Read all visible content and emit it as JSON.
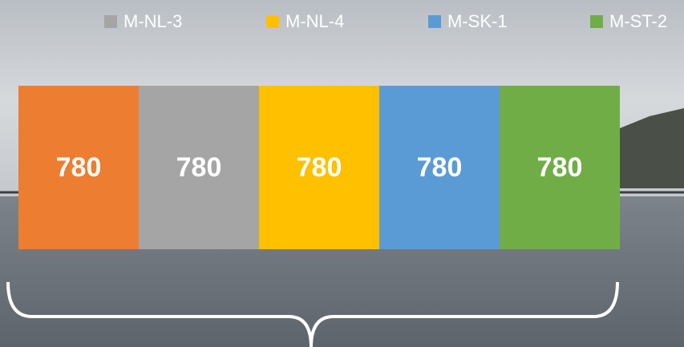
{
  "chart_data": {
    "type": "bar",
    "orientation": "horizontal",
    "stacked": true,
    "series": [
      {
        "color": "#ed7d31",
        "values": [
          780
        ]
      },
      {
        "name": "M-NL-3",
        "color": "#a5a5a5",
        "values": [
          780
        ]
      },
      {
        "name": "M-NL-4",
        "color": "#ffc000",
        "values": [
          780
        ]
      },
      {
        "name": "M-SK-1",
        "color": "#5b9bd5",
        "values": [
          780
        ]
      },
      {
        "name": "M-ST-2",
        "color": "#70ad47",
        "values": [
          780
        ]
      }
    ]
  }
}
